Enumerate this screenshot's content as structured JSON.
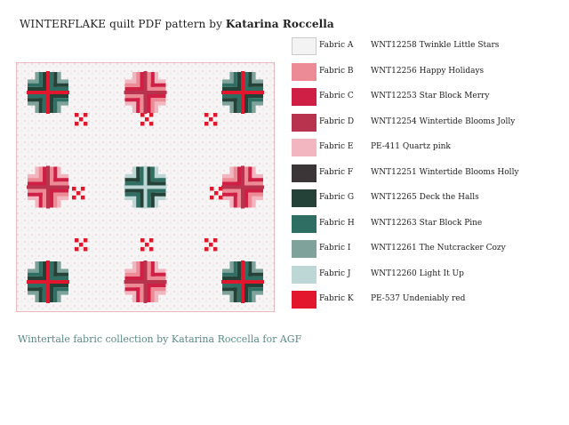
{
  "header": {
    "title_prefix": "WINTERFLAKE quilt PDF pattern by ",
    "title_designer": "Katarina Roccella"
  },
  "footer": {
    "collection": "Wintertale fabric collection by Katarina Roccella for AGF"
  },
  "colors": {
    "A": "#f4f3f3",
    "B": "#ec8a96",
    "C": "#cf1f45",
    "D": "#b8344e",
    "E": "#f2b6c0",
    "F": "#3c3537",
    "G": "#244238",
    "H": "#2f6e62",
    "I": "#7fa39b",
    "J": "#bcd7d6",
    "K": "#e2172d"
  },
  "fabrics": [
    {
      "label": "Fabric A",
      "code": "WNT12258 Twinkle Little Stars",
      "color": "#f4f3f3"
    },
    {
      "label": "Fabric B",
      "code": "WNT12256 Happy Holidays",
      "color": "#ec8a96"
    },
    {
      "label": "Fabric C",
      "code": "WNT12253 Star Block Merry",
      "color": "#cf1f45"
    },
    {
      "label": "Fabric D",
      "code": "WNT12254 Wintertide Blooms Jolly",
      "color": "#b8344e"
    },
    {
      "label": "Fabric E",
      "code": "PE-411 Quartz pink",
      "color": "#f2b6c0"
    },
    {
      "label": "Fabric F",
      "code": "WNT12251 Wintertide Blooms Holly",
      "color": "#3c3537"
    },
    {
      "label": "Fabric G",
      "code": "WNT12265 Deck the Halls",
      "color": "#244238"
    },
    {
      "label": "Fabric H",
      "code": "WNT12263 Star Block Pine",
      "color": "#2f6e62"
    },
    {
      "label": "Fabric I",
      "code": "WNT12261 The Nutcracker Cozy",
      "color": "#7fa39b"
    },
    {
      "label": "Fabric J",
      "code": "WNT12260 Light It Up",
      "color": "#bcd7d6"
    },
    {
      "label": "Fabric K",
      "code": "PE-537 Undeniably red",
      "color": "#e2172d"
    }
  ]
}
